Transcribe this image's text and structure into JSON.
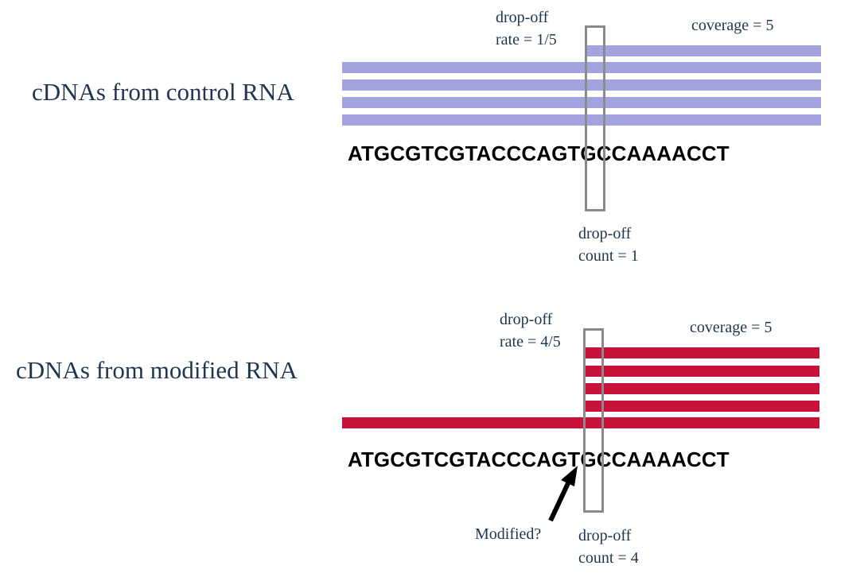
{
  "colors": {
    "control_read": "#a3a3df",
    "modified_read": "#c8123c",
    "window_outline": "#8a8a8a",
    "label_text": "#1f3550"
  },
  "control": {
    "label": "cDNAs from control RNA",
    "dropoff_rate": [
      "drop-off",
      "rate = 1/5"
    ],
    "coverage": "coverage = 5",
    "sequence": "ATGCGTCGTACCCAGTGCCAAAACCT",
    "dropoff_count": [
      "drop-off",
      "count = 1"
    ]
  },
  "modified": {
    "label": "cDNAs from modified RNA",
    "dropoff_rate": [
      "drop-off",
      "rate = 4/5"
    ],
    "coverage": "coverage = 5",
    "sequence": "ATGCGTCGTACCCAGTGCCAAAACCT",
    "dropoff_count": [
      "drop-off",
      "count = 4"
    ],
    "annotation": "Modified?"
  }
}
